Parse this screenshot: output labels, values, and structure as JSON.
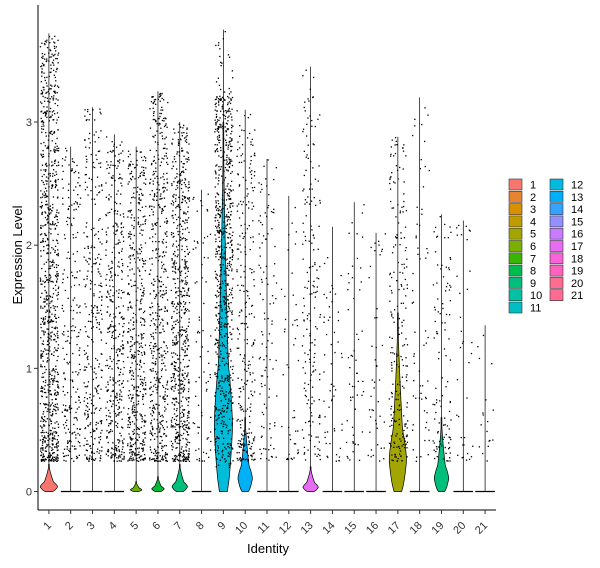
{
  "chart_data": {
    "type": "violin",
    "xlabel": "Identity",
    "ylabel": "Expression Level",
    "ylim": [
      -0.15,
      3.95
    ],
    "yticks": [
      0,
      1,
      2,
      3
    ],
    "categories": [
      "1",
      "2",
      "3",
      "4",
      "5",
      "6",
      "7",
      "8",
      "9",
      "10",
      "11",
      "12",
      "13",
      "14",
      "15",
      "16",
      "17",
      "18",
      "19",
      "20",
      "21"
    ],
    "colors": [
      "#F8766D",
      "#E58700",
      "#C99800",
      "#A3A500",
      "#6BB100",
      "#00BA38",
      "#00BF7D",
      "#00C0AF",
      "#00BCD8",
      "#00B0F6",
      "#619CFF",
      "#B983FF",
      "#E76BF3",
      "#FD61D1",
      "#FF67A4",
      "#D89000",
      "#A3A500",
      "#39B600",
      "#00BF7D",
      "#00BFC4",
      "#FF62BC"
    ],
    "legend_colors": [
      "#F8766D",
      "#EA8331",
      "#D89000",
      "#C09B00",
      "#A3A500",
      "#7CAE00",
      "#39B600",
      "#00BB4E",
      "#00BF7D",
      "#00C1A3",
      "#00BFC4",
      "#00BAE0",
      "#00B0F6",
      "#35A2FF",
      "#9590FF",
      "#C77CFF",
      "#E76BF3",
      "#FA62DB",
      "#FF62BC",
      "#FF6C91",
      "#FF6C91"
    ],
    "series": [
      {
        "name": "1",
        "max": 3.72,
        "violin_height": 0.22,
        "violin_width": 0.9,
        "jitter_density": 1.0
      },
      {
        "name": "2",
        "max": 2.8,
        "violin_height": 0.02,
        "violin_width": 0.1,
        "jitter_density": 0.25
      },
      {
        "name": "3",
        "max": 3.12,
        "violin_height": 0.02,
        "violin_width": 0.1,
        "jitter_density": 0.35
      },
      {
        "name": "4",
        "max": 2.9,
        "violin_height": 0.02,
        "violin_width": 0.1,
        "jitter_density": 0.45
      },
      {
        "name": "5",
        "max": 2.8,
        "violin_height": 0.08,
        "violin_width": 0.6,
        "jitter_density": 0.55
      },
      {
        "name": "6",
        "max": 3.25,
        "violin_height": 0.12,
        "violin_width": 0.65,
        "jitter_density": 0.6
      },
      {
        "name": "7",
        "max": 3.0,
        "violin_height": 0.22,
        "violin_width": 0.8,
        "jitter_density": 0.75
      },
      {
        "name": "8",
        "max": 2.45,
        "violin_height": 0.02,
        "violin_width": 0.1,
        "jitter_density": 0.08
      },
      {
        "name": "9",
        "max": 3.75,
        "violin_height": 3.0,
        "violin_width": 0.95,
        "jitter_density": 0.85
      },
      {
        "name": "10",
        "max": 3.1,
        "violin_height": 0.6,
        "violin_width": 0.75,
        "jitter_density": 0.3
      },
      {
        "name": "11",
        "max": 2.7,
        "violin_height": 0.02,
        "violin_width": 0.1,
        "jitter_density": 0.12
      },
      {
        "name": "12",
        "max": 2.4,
        "violin_height": 0.02,
        "violin_width": 0.1,
        "jitter_density": 0.05
      },
      {
        "name": "13",
        "max": 3.45,
        "violin_height": 0.2,
        "violin_width": 0.8,
        "jitter_density": 0.2
      },
      {
        "name": "14",
        "max": 2.15,
        "violin_height": 0.02,
        "violin_width": 0.1,
        "jitter_density": 0.06
      },
      {
        "name": "15",
        "max": 2.35,
        "violin_height": 0.02,
        "violin_width": 0.1,
        "jitter_density": 0.06
      },
      {
        "name": "16",
        "max": 2.1,
        "violin_height": 0.02,
        "violin_width": 0.1,
        "jitter_density": 0.05
      },
      {
        "name": "17",
        "max": 2.88,
        "violin_height": 1.45,
        "violin_width": 0.9,
        "jitter_density": 0.25
      },
      {
        "name": "18",
        "max": 3.2,
        "violin_height": 0.02,
        "violin_width": 0.1,
        "jitter_density": 0.07
      },
      {
        "name": "19",
        "max": 2.25,
        "violin_height": 0.6,
        "violin_width": 0.75,
        "jitter_density": 0.12
      },
      {
        "name": "20",
        "max": 2.2,
        "violin_height": 0.02,
        "violin_width": 0.1,
        "jitter_density": 0.04
      },
      {
        "name": "21",
        "max": 1.35,
        "violin_height": 0.02,
        "violin_width": 0.1,
        "jitter_density": 0.02
      }
    ]
  }
}
